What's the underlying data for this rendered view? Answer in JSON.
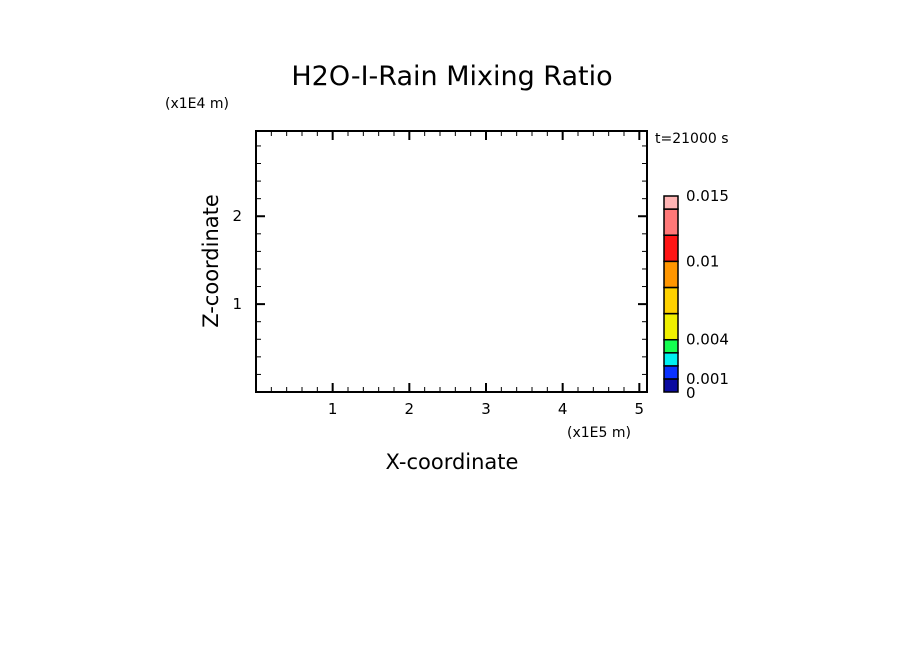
{
  "chart_data": {
    "type": "heatmap",
    "title": "H2O-I-Rain Mixing Ratio",
    "xlabel": "X-coordinate",
    "ylabel": "Z-coordinate",
    "x_scale_label": "(x1E5 m)",
    "y_scale_label": "(x1E4 m)",
    "time_label": "t=21000 s",
    "xlim": [
      0,
      5.1
    ],
    "ylim": [
      0,
      2.97
    ],
    "x_ticks": [
      1,
      2,
      3,
      4,
      5
    ],
    "x_tick_labels": [
      "1",
      "2",
      "3",
      "4",
      "5"
    ],
    "y_ticks": [
      1,
      2
    ],
    "y_tick_labels": [
      "1",
      "2"
    ],
    "minor_tick_step": 0.2,
    "grid": false,
    "data": [],
    "colorbar": {
      "levels": [
        0,
        0.001,
        0.002,
        0.003,
        0.004,
        0.006,
        0.008,
        0.01,
        0.012,
        0.014,
        0.015
      ],
      "colors": [
        "#0a0aa0",
        "#0a32ff",
        "#00f0f0",
        "#14ff50",
        "#f0f000",
        "#ffd200",
        "#ff9600",
        "#ff1414",
        "#ff7878",
        "#ffb4b4"
      ],
      "labels": [
        {
          "value": 0.015,
          "text": "0.015"
        },
        {
          "value": 0.01,
          "text": "0.01"
        },
        {
          "value": 0.004,
          "text": "0.004"
        },
        {
          "value": 0.001,
          "text": "0.001"
        },
        {
          "value": 0,
          "text": "0"
        }
      ],
      "placement": "right"
    }
  }
}
